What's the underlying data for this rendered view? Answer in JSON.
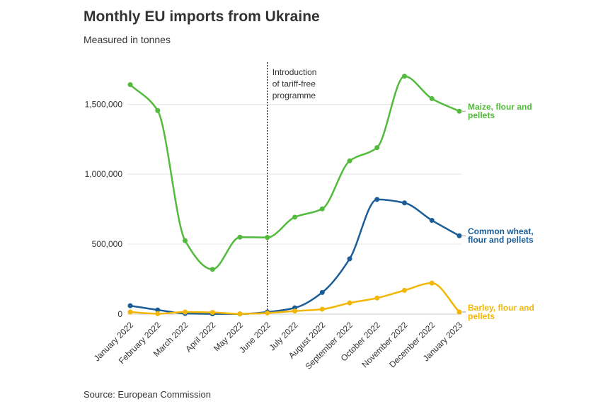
{
  "title": "Monthly EU imports from Ukraine",
  "subtitle": "Measured in tonnes",
  "source": "Source: European Commission",
  "annotation": [
    "Introduction",
    "of tariff-free",
    "programme"
  ],
  "chart_data": {
    "type": "line",
    "title": "Monthly EU imports from Ukraine",
    "subtitle": "Measured in tonnes",
    "xlabel": "",
    "ylabel": "",
    "ylim": [
      0,
      1800000
    ],
    "yticks": [
      0,
      500000,
      1000000,
      1500000
    ],
    "ytick_labels": [
      "0",
      "500,000",
      "1,000,000",
      "1,500,000"
    ],
    "categories": [
      "January 2022",
      "February 2022",
      "March 2022",
      "April 2022",
      "May 2022",
      "June 2022",
      "July 2022",
      "August 2022",
      "September 2022",
      "October 2022",
      "November 2022",
      "December 2022",
      "January 2023"
    ],
    "annotation_at": "June 2022",
    "series": [
      {
        "name": "Maize, flour and pellets",
        "label_lines": [
          "Maize, flour and",
          "pellets"
        ],
        "color": "#52bb3c",
        "values": [
          1640000,
          1455000,
          525000,
          320000,
          550000,
          548000,
          693000,
          752000,
          1095000,
          1190000,
          1700000,
          1540000,
          1450000
        ]
      },
      {
        "name": "Common wheat, flour and pellets",
        "label_lines": [
          "Common wheat,",
          "flour and pellets"
        ],
        "color": "#1b5e97",
        "values": [
          60000,
          30000,
          5000,
          2000,
          1000,
          15000,
          45000,
          155000,
          395000,
          820000,
          795000,
          670000,
          560000
        ]
      },
      {
        "name": "Barley, flour and pellets",
        "label_lines": [
          "Barley, flour and",
          "pellets"
        ],
        "color": "#f2b705",
        "values": [
          15000,
          3000,
          15000,
          12000,
          2000,
          8000,
          22000,
          35000,
          80000,
          115000,
          170000,
          222000,
          15000
        ]
      }
    ]
  }
}
